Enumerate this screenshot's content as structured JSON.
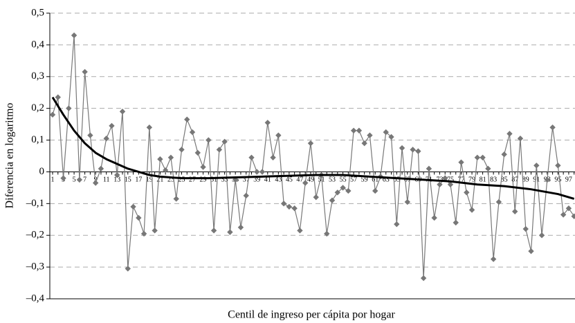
{
  "chart_data": {
    "type": "line",
    "ylabel": "Diferencia en logaritmo",
    "xlabel": "Centil de ingreso per cápita por hogar",
    "categories": [
      "1",
      null,
      "3",
      null,
      "5",
      null,
      "7",
      null,
      "9",
      null,
      "11",
      null,
      "13",
      null,
      "15",
      null,
      "17",
      null,
      "19",
      null,
      "21",
      null,
      "23",
      null,
      "25",
      null,
      "27",
      null,
      "29",
      null,
      "31",
      null,
      "33",
      null,
      "35",
      null,
      "37",
      null,
      "39",
      null,
      "41",
      null,
      "43",
      null,
      "45",
      null,
      "47",
      null,
      "49",
      null,
      "51",
      null,
      "53",
      null,
      "55",
      null,
      "57",
      null,
      "59",
      null,
      "61",
      null,
      "63",
      null,
      "65",
      null,
      "67",
      null,
      "69",
      null,
      "71",
      null,
      "73",
      null,
      "75",
      null,
      "77",
      null,
      "79",
      null,
      "81",
      null,
      "83",
      null,
      "85",
      null,
      "87",
      null,
      "89",
      null,
      "91",
      null,
      "93",
      null,
      "95",
      null,
      "97",
      null
    ],
    "series": [
      {
        "color": "#777777",
        "marker": "diamond",
        "values": [
          0.18,
          0.235,
          -0.02,
          0.2,
          0.43,
          -0.025,
          0.315,
          0.115,
          -0.035,
          0.01,
          0.105,
          0.145,
          -0.01,
          0.19,
          -0.305,
          -0.11,
          -0.145,
          -0.195,
          0.14,
          -0.185,
          0.04,
          0.005,
          0.045,
          -0.085,
          0.07,
          0.165,
          0.125,
          0.06,
          0.015,
          0.1,
          -0.185,
          0.07,
          0.095,
          -0.19,
          -0.025,
          -0.175,
          -0.075,
          0.045,
          0.0,
          0.0,
          0.155,
          0.045,
          0.115,
          -0.1,
          -0.11,
          -0.115,
          -0.185,
          -0.035,
          0.09,
          -0.08,
          -0.01,
          -0.195,
          -0.09,
          -0.065,
          -0.05,
          -0.06,
          0.13,
          0.13,
          0.09,
          0.115,
          -0.06,
          -0.015,
          0.125,
          0.11,
          -0.165,
          0.075,
          -0.095,
          0.07,
          0.065,
          -0.335,
          0.01,
          -0.145,
          -0.04,
          -0.02,
          -0.04,
          -0.16,
          0.03,
          -0.065,
          -0.12,
          0.045,
          0.045,
          0.01,
          -0.275,
          -0.095,
          0.055,
          0.12,
          -0.125,
          0.105,
          -0.18,
          -0.25,
          0.02,
          -0.2,
          -0.025,
          0.14,
          0.02,
          -0.135,
          -0.115,
          -0.14
        ]
      },
      {
        "color": "#000000",
        "x": [
          1,
          3,
          5,
          7,
          9,
          11,
          13,
          15,
          17,
          19,
          21,
          25,
          30,
          40,
          50,
          55,
          60,
          65,
          70,
          75,
          80,
          85,
          90,
          95,
          98
        ],
        "values": [
          0.235,
          0.18,
          0.13,
          0.09,
          0.06,
          0.04,
          0.025,
          0.01,
          0.0,
          -0.01,
          -0.015,
          -0.02,
          -0.02,
          -0.015,
          -0.01,
          -0.01,
          -0.015,
          -0.02,
          -0.025,
          -0.03,
          -0.04,
          -0.045,
          -0.055,
          -0.07,
          -0.085
        ]
      }
    ],
    "ylim": [
      -0.4,
      0.5
    ],
    "yticks": [
      {
        "value": -0.4,
        "label": "–0,4"
      },
      {
        "value": -0.3,
        "label": "–0,3"
      },
      {
        "value": -0.2,
        "label": "–0,2"
      },
      {
        "value": -0.1,
        "label": "–0,1"
      },
      0,
      {
        "value": 0.1,
        "label": "0,1"
      },
      {
        "value": 0.2,
        "label": "0,2"
      },
      {
        "value": 0.3,
        "label": "0,3"
      },
      {
        "value": 0.4,
        "label": "0,4"
      },
      {
        "value": 0.5,
        "label": "0,5"
      }
    ],
    "grid": true
  }
}
